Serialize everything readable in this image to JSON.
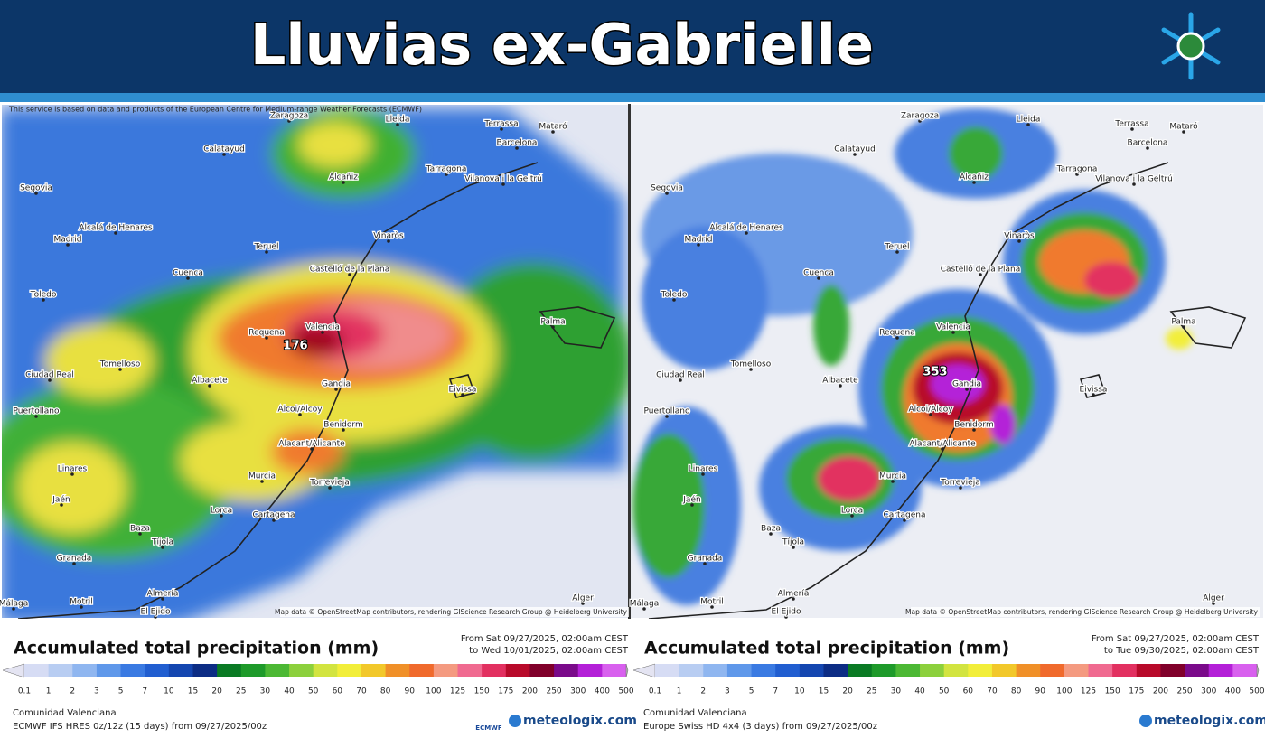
{
  "header": {
    "title": "Lluvias ex-Gabrielle"
  },
  "scale": {
    "title": "Accumulated total precipitation (mm)",
    "labels": [
      "0.1",
      "1",
      "2",
      "3",
      "5",
      "7",
      "10",
      "15",
      "20",
      "25",
      "30",
      "40",
      "50",
      "60",
      "70",
      "80",
      "90",
      "100",
      "125",
      "150",
      "175",
      "200",
      "250",
      "300",
      "400",
      "500"
    ],
    "colors": [
      "#e4e4f2",
      "#d6dcf4",
      "#b8cdf2",
      "#8fb6f0",
      "#5f98ea",
      "#3a7ae2",
      "#215ed0",
      "#1446b0",
      "#0c2c84",
      "#0a7a24",
      "#1e9a2a",
      "#4cb834",
      "#8cd03c",
      "#d2e440",
      "#f2ee3a",
      "#f2c82a",
      "#f09028",
      "#f06a2c",
      "#f49a80",
      "#f06a90",
      "#e23060",
      "#b80a2a",
      "#80002a",
      "#7a0a8a",
      "#b420d8",
      "#d860ee",
      "#eaa6f2",
      "#f2e0f6",
      "#b8b8b8"
    ]
  },
  "places": [
    "Zaragoza",
    "Lleida",
    "Calatayud",
    "Terrassa",
    "Mataró",
    "Barcelona",
    "Tarragona",
    "Vilanova i la Geltrú",
    "Alcañiz",
    "Segovia",
    "Alcalá de Henares",
    "Madrid",
    "Teruel",
    "Vinaròs",
    "Castelló de la Plana",
    "Cuenca",
    "Toledo",
    "Requena",
    "Valencia",
    "Palma",
    "Tomelloso",
    "Ciudad Real",
    "Albacete",
    "Gandia",
    "Eivissa",
    "Puertollano",
    "Alcoi/Alcoy",
    "Benidorm",
    "Alacant/Alicante",
    "Murcia",
    "Torrevieja",
    "Linares",
    "Jaén",
    "Lorca",
    "Cartagena",
    "Baza",
    "Tíjola",
    "Granada",
    "Almería",
    "El Ejido",
    "Motril",
    "Málaga",
    "Alger"
  ],
  "maps": [
    {
      "attribution_top": "This service is based on data and products of the European Centre for Medium-range Weather Forecasts (ECMWF)",
      "attribution_bottom": "Map data © OpenStreetMap contributors, rendering GIScience Research Group @ Heidelberg University",
      "peak": "176",
      "period_from": "From Sat 09/27/2025, 02:00am CEST",
      "period_to": "to Wed 10/01/2025, 02:00am CEST",
      "region": "Comunidad Valenciana",
      "model": "ECMWF IFS HRES 0z/12z (15 days) from 09/27/2025/00z",
      "model_logo": "ECMWF",
      "brand": "meteologix.com"
    },
    {
      "attribution_top": "",
      "attribution_bottom": "Map data © OpenStreetMap contributors, rendering GIScience Research Group @ Heidelberg University",
      "peak": "353",
      "period_from": "From Sat 09/27/2025, 02:00am CEST",
      "period_to": "to Tue 09/30/2025, 02:00am CEST",
      "region": "Comunidad Valenciana",
      "model": "Europe Swiss HD 4x4 (3 days) from 09/27/2025/00z",
      "model_logo": "",
      "brand": "meteologix.com"
    }
  ]
}
